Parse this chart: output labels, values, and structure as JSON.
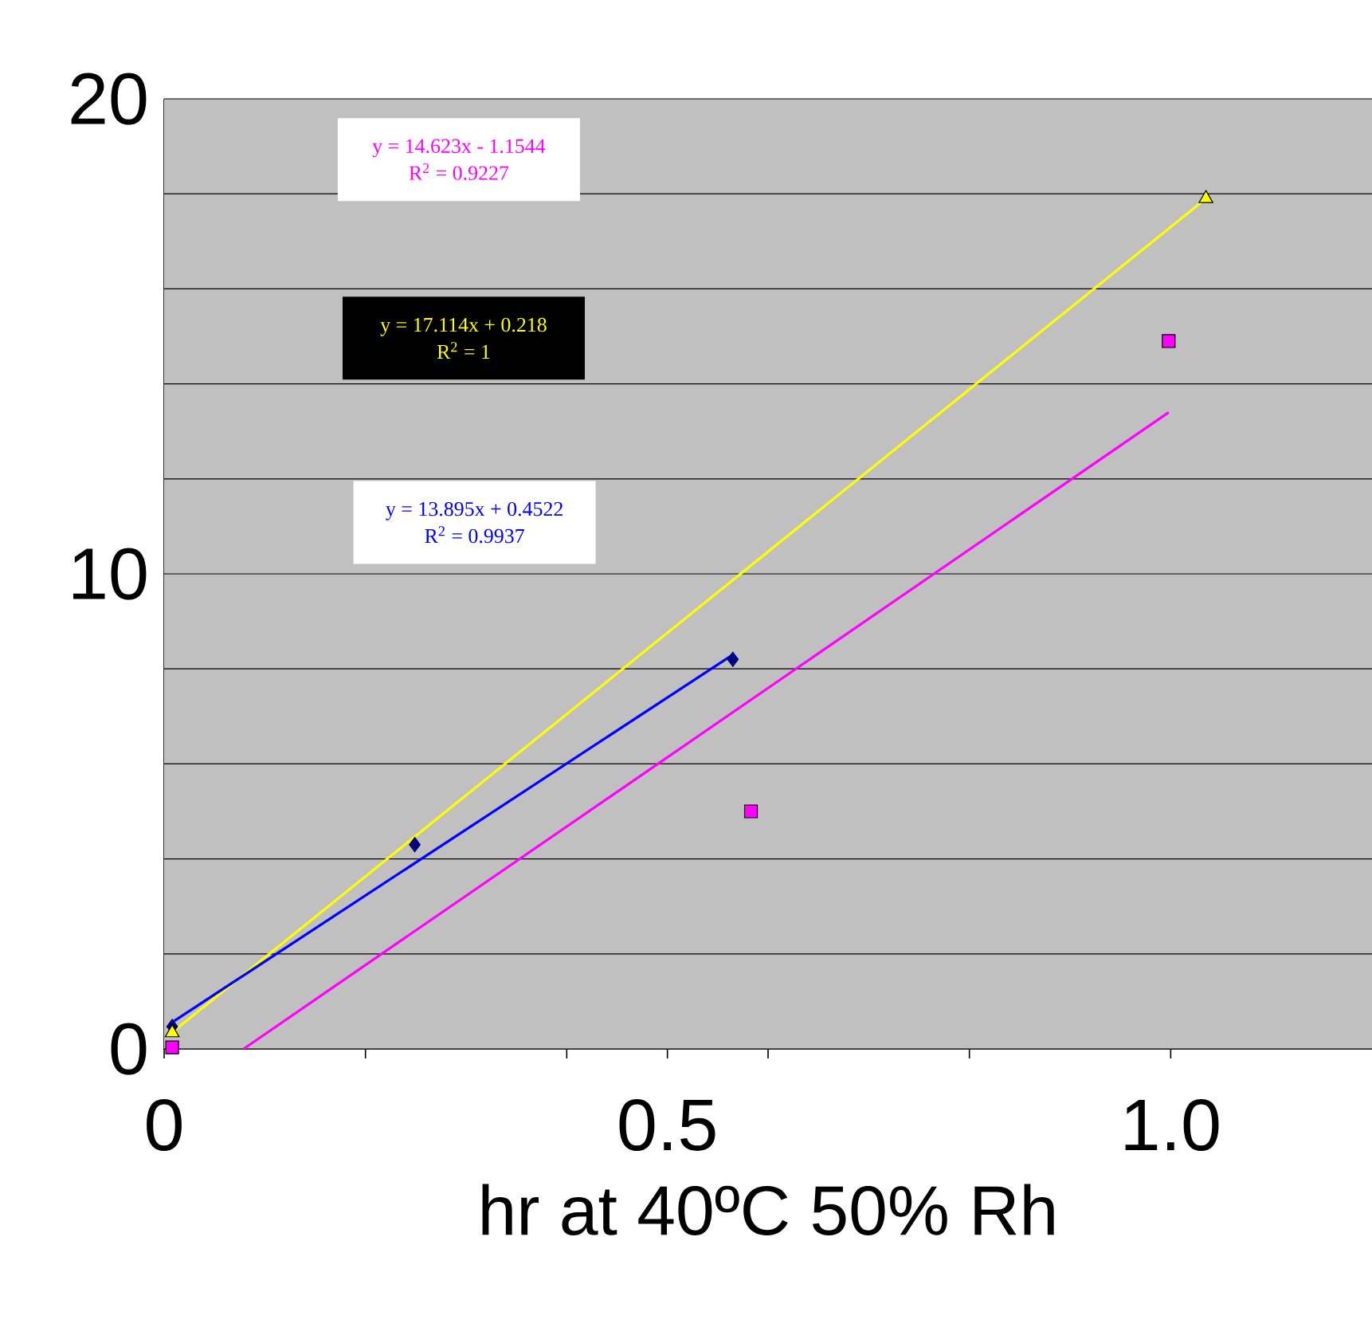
{
  "chart_data": {
    "type": "scatter",
    "xlabel": "hr at 40ºC 50% Rh",
    "xlim": [
      0,
      1.2
    ],
    "xticks": [
      {
        "value": 0,
        "label": "0"
      },
      {
        "value": 0.2,
        "label": null
      },
      {
        "value": 0.4,
        "label": null
      },
      {
        "value": 0.5,
        "label": "0.5"
      },
      {
        "value": 0.6,
        "label": null
      },
      {
        "value": 0.8,
        "label": null
      },
      {
        "value": 1.0,
        "label": "1.0"
      }
    ],
    "ylim": [
      0,
      20
    ],
    "yticks": [
      0,
      {
        "value": 2,
        "label": null
      },
      {
        "value": 4,
        "label": null
      },
      {
        "value": 6,
        "label": null
      },
      {
        "value": 8,
        "label": null
      },
      10,
      {
        "value": 12,
        "label": null
      },
      {
        "value": 14,
        "label": null
      },
      {
        "value": 16,
        "label": null
      },
      {
        "value": 18,
        "label": null
      },
      20
    ],
    "grid": "y",
    "series": [
      {
        "marker": "diamond",
        "color": "#000080",
        "x": [
          0.008,
          0.249,
          0.565
        ],
        "values": [
          0.47,
          4.3,
          8.2
        ]
      },
      {
        "marker": "square",
        "color": "#ff00ff",
        "x": [
          0.008,
          0.583,
          0.998
        ],
        "values": [
          0.03,
          5.0,
          14.9
        ]
      },
      {
        "marker": "triangle",
        "color": "#ffff00",
        "x": [
          0.008,
          1.035
        ],
        "values": [
          0.34,
          17.9
        ]
      },
      {
        "type": "line",
        "marker": "none",
        "color": "#ff00ff",
        "x": [
          0.079,
          0.998
        ],
        "values": [
          0.0,
          13.4
        ]
      },
      {
        "type": "line",
        "marker": "none",
        "color": "#ffff00",
        "x": [
          0.008,
          1.035
        ],
        "values": [
          0.35,
          17.9
        ]
      },
      {
        "type": "line",
        "marker": "none",
        "color": "#0000ff",
        "x": [
          0.008,
          0.565
        ],
        "values": [
          0.56,
          8.3
        ]
      }
    ],
    "annotations": [
      "y = 14.623x - 1.1544",
      "R$^{2}$ = 0.9227",
      "y = 17.114x + 0.218",
      "R$^{2}$ = 1",
      "y = 13.895x + 0.4522",
      "R$^{2}$ = 0.9937"
    ]
  }
}
